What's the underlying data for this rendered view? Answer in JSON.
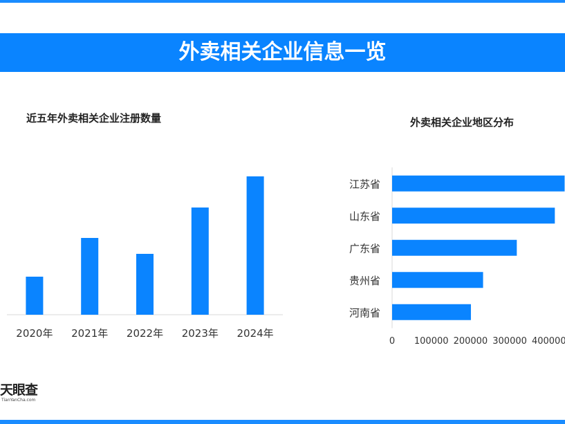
{
  "header": {
    "title": "外卖相关企业信息一览"
  },
  "chart_data": [
    {
      "type": "bar",
      "title": "近五年外卖相关企业注册数量",
      "categories": [
        "2020年",
        "2021年",
        "2022年",
        "2023年",
        "2024年"
      ],
      "values": [
        55,
        111,
        88,
        155,
        200
      ],
      "xlabel": "",
      "ylabel": "",
      "ylim": [
        0,
        200
      ],
      "grid": false,
      "legend": "none",
      "color": "#0a84ff"
    },
    {
      "type": "bar",
      "orientation": "horizontal",
      "title": "外卖相关企业地区分布",
      "categories": [
        "江苏省",
        "山东省",
        "广东省",
        "贵州省",
        "河南省"
      ],
      "values": [
        440000,
        415000,
        318000,
        232000,
        201000
      ],
      "xticks": [
        "0",
        "100000",
        "200000",
        "300000",
        "400000"
      ],
      "xlim": [
        0,
        440000
      ],
      "grid": false,
      "legend": "none",
      "color": "#0a84ff"
    }
  ],
  "footer": {
    "logo_text": "天眼查",
    "logo_sub": "TianYanCha.com"
  }
}
